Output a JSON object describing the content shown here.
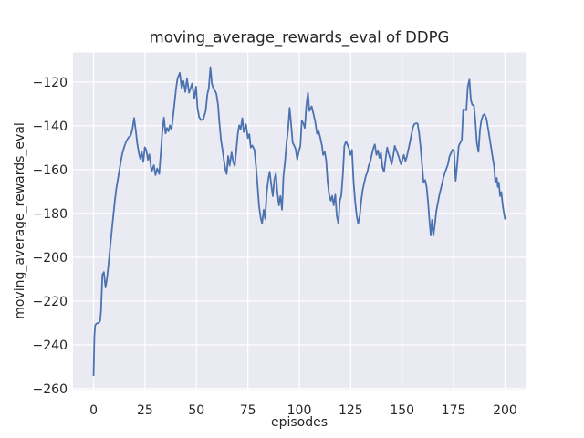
{
  "colors": {
    "figure_bg": "#ffffff",
    "axes_bg": "#eaeaf2",
    "grid": "#ffffff",
    "text": "#262626",
    "line": "#4c72b0"
  },
  "chart_data": {
    "type": "line",
    "title": "moving_average_rewards_eval of DDPG",
    "xlabel": "episodes",
    "ylabel": "moving_average_rewards_eval",
    "grid": true,
    "legend_position": "none",
    "xlim": [
      -10,
      210
    ],
    "ylim": [
      -260.5,
      -106.5
    ],
    "x_ticks": [
      0,
      25,
      50,
      75,
      100,
      125,
      150,
      175,
      200
    ],
    "x_tick_labels": [
      "0",
      "25",
      "50",
      "75",
      "100",
      "125",
      "150",
      "175",
      "200"
    ],
    "y_ticks": [
      -120,
      -140,
      -160,
      -180,
      -200,
      -220,
      -240,
      -260
    ],
    "y_tick_labels": [
      "−120",
      "−140",
      "−160",
      "−180",
      "−200",
      "−220",
      "−240",
      "−260"
    ],
    "series": [
      {
        "name": "moving_average_rewards_eval",
        "color": "#4c72b0",
        "points": [
          [
            0,
            -254
          ],
          [
            0.4,
            -236
          ],
          [
            0.8,
            -231
          ],
          [
            1.5,
            -230.3
          ],
          [
            2.6,
            -230
          ],
          [
            3.2,
            -229
          ],
          [
            3.6,
            -225
          ],
          [
            4.3,
            -208
          ],
          [
            5,
            -206.8
          ],
          [
            5.8,
            -213.8
          ],
          [
            6.5,
            -210
          ],
          [
            7.3,
            -203
          ],
          [
            8,
            -196
          ],
          [
            9,
            -186.5
          ],
          [
            9.6,
            -181
          ],
          [
            10.3,
            -174.5
          ],
          [
            11,
            -169
          ],
          [
            11.8,
            -164.5
          ],
          [
            12.5,
            -160.5
          ],
          [
            13.3,
            -156
          ],
          [
            14,
            -152.5
          ],
          [
            15,
            -149.3
          ],
          [
            16,
            -146.9
          ],
          [
            17,
            -145.3
          ],
          [
            18,
            -144.5
          ],
          [
            18.8,
            -142
          ],
          [
            19.7,
            -136.4
          ],
          [
            20.5,
            -142
          ],
          [
            21.2,
            -147.8
          ],
          [
            22,
            -152.5
          ],
          [
            22.7,
            -155
          ],
          [
            23.4,
            -151.9
          ],
          [
            24.2,
            -156.5
          ],
          [
            24.9,
            -149.8
          ],
          [
            25.6,
            -151
          ],
          [
            26.4,
            -155.5
          ],
          [
            27.1,
            -153
          ],
          [
            28.2,
            -161
          ],
          [
            29.3,
            -158
          ],
          [
            30.1,
            -162.5
          ],
          [
            30.9,
            -159.5
          ],
          [
            31.9,
            -162
          ],
          [
            32.7,
            -152
          ],
          [
            33.4,
            -143
          ],
          [
            34.2,
            -136.2
          ],
          [
            35,
            -143.5
          ],
          [
            35.7,
            -141
          ],
          [
            36.4,
            -142.5
          ],
          [
            37.1,
            -139.8
          ],
          [
            37.9,
            -141.8
          ],
          [
            38.6,
            -136
          ],
          [
            39.3,
            -130
          ],
          [
            40.1,
            -123
          ],
          [
            40.8,
            -118.5
          ],
          [
            41.9,
            -115.8
          ],
          [
            42.8,
            -122.8
          ],
          [
            43.7,
            -119.6
          ],
          [
            44.6,
            -124.5
          ],
          [
            45.4,
            -118.5
          ],
          [
            46.4,
            -124.9
          ],
          [
            47.9,
            -120.7
          ],
          [
            48.9,
            -127.6
          ],
          [
            49.8,
            -122.1
          ],
          [
            50.5,
            -131.8
          ],
          [
            51.3,
            -136
          ],
          [
            52.3,
            -137.4
          ],
          [
            53.4,
            -136.8
          ],
          [
            54.5,
            -133.2
          ],
          [
            55.3,
            -125.6
          ],
          [
            56,
            -122.8
          ],
          [
            56.8,
            -113.2
          ],
          [
            57.5,
            -120.7
          ],
          [
            58.2,
            -122.8
          ],
          [
            59,
            -124
          ],
          [
            59.7,
            -125.4
          ],
          [
            60.5,
            -130.4
          ],
          [
            61.2,
            -139
          ],
          [
            62,
            -147
          ],
          [
            62.7,
            -151
          ],
          [
            63.4,
            -156
          ],
          [
            64.2,
            -160.5
          ],
          [
            64.7,
            -162
          ],
          [
            65.4,
            -153.8
          ],
          [
            66.1,
            -158.2
          ],
          [
            67.1,
            -152.2
          ],
          [
            67.9,
            -156.5
          ],
          [
            68.6,
            -158.3
          ],
          [
            69.3,
            -152
          ],
          [
            70.1,
            -143.6
          ],
          [
            70.8,
            -139.8
          ],
          [
            71.5,
            -141.5
          ],
          [
            72.3,
            -136.5
          ],
          [
            73,
            -142.8
          ],
          [
            74.1,
            -139.3
          ],
          [
            75,
            -145.6
          ],
          [
            75.7,
            -143.8
          ],
          [
            76.4,
            -149.9
          ],
          [
            77.2,
            -149
          ],
          [
            78.2,
            -151
          ],
          [
            79,
            -158.9
          ],
          [
            79.7,
            -167.2
          ],
          [
            80.4,
            -176.3
          ],
          [
            81.2,
            -182
          ],
          [
            81.9,
            -184.6
          ],
          [
            82.7,
            -178.3
          ],
          [
            83.4,
            -182.5
          ],
          [
            84.2,
            -170
          ],
          [
            84.9,
            -164.4
          ],
          [
            85.6,
            -161
          ],
          [
            86.4,
            -167.2
          ],
          [
            87.1,
            -172.1
          ],
          [
            87.9,
            -164.4
          ],
          [
            88.6,
            -161.7
          ],
          [
            89.3,
            -170
          ],
          [
            90.1,
            -176.3
          ],
          [
            90.8,
            -172.1
          ],
          [
            91.6,
            -178.3
          ],
          [
            92.3,
            -163
          ],
          [
            93.1,
            -156
          ],
          [
            93.8,
            -147.8
          ],
          [
            94.5,
            -142.2
          ],
          [
            95.3,
            -131.8
          ],
          [
            96,
            -139
          ],
          [
            96.8,
            -147.8
          ],
          [
            97.5,
            -149
          ],
          [
            98.2,
            -150.6
          ],
          [
            99,
            -155.4
          ],
          [
            99.7,
            -152
          ],
          [
            100.5,
            -149.2
          ],
          [
            101.2,
            -137.6
          ],
          [
            102,
            -139
          ],
          [
            102.7,
            -141
          ],
          [
            103.4,
            -131
          ],
          [
            104.2,
            -124.9
          ],
          [
            104.9,
            -133.2
          ],
          [
            106,
            -131.1
          ],
          [
            106.9,
            -134.6
          ],
          [
            107.7,
            -138
          ],
          [
            108.6,
            -143.6
          ],
          [
            109.4,
            -142.5
          ],
          [
            110.1,
            -145
          ],
          [
            111,
            -149
          ],
          [
            111.6,
            -153.3
          ],
          [
            112.4,
            -152
          ],
          [
            113.1,
            -156.1
          ],
          [
            113.8,
            -165.8
          ],
          [
            114.5,
            -171.4
          ],
          [
            115.3,
            -174.2
          ],
          [
            116,
            -172
          ],
          [
            116.7,
            -176.3
          ],
          [
            117.5,
            -171.4
          ],
          [
            118.2,
            -181.1
          ],
          [
            119,
            -184.6
          ],
          [
            119.7,
            -174.2
          ],
          [
            120.4,
            -172
          ],
          [
            121.2,
            -162
          ],
          [
            121.9,
            -149.2
          ],
          [
            122.7,
            -147.1
          ],
          [
            123.4,
            -148.5
          ],
          [
            124.2,
            -150.6
          ],
          [
            124.9,
            -153.3
          ],
          [
            125.6,
            -151
          ],
          [
            126.4,
            -165.8
          ],
          [
            127.1,
            -174.2
          ],
          [
            127.9,
            -181.1
          ],
          [
            128.6,
            -184.6
          ],
          [
            129.4,
            -181
          ],
          [
            130.1,
            -174.2
          ],
          [
            130.8,
            -169.3
          ],
          [
            131.6,
            -165.8
          ],
          [
            132.3,
            -163
          ],
          [
            133.1,
            -161
          ],
          [
            133.8,
            -158
          ],
          [
            134.5,
            -156.3
          ],
          [
            135.3,
            -153
          ],
          [
            136,
            -150.2
          ],
          [
            136.7,
            -148.5
          ],
          [
            137.5,
            -153.3
          ],
          [
            138.2,
            -151.2
          ],
          [
            139,
            -154.7
          ],
          [
            139.7,
            -152.3
          ],
          [
            140.4,
            -158.9
          ],
          [
            141.2,
            -161
          ],
          [
            142,
            -154.7
          ],
          [
            142.7,
            -149.9
          ],
          [
            143.4,
            -152.6
          ],
          [
            144.2,
            -155
          ],
          [
            144.9,
            -157.5
          ],
          [
            145.7,
            -153.5
          ],
          [
            146.4,
            -149.2
          ],
          [
            147.1,
            -151
          ],
          [
            147.9,
            -153
          ],
          [
            148.6,
            -155
          ],
          [
            149.4,
            -157.5
          ],
          [
            150.1,
            -155.5
          ],
          [
            150.8,
            -153.3
          ],
          [
            151.6,
            -156.1
          ],
          [
            152.3,
            -154
          ],
          [
            153.1,
            -150.5
          ],
          [
            153.8,
            -147.5
          ],
          [
            154.5,
            -144
          ],
          [
            155.3,
            -140.5
          ],
          [
            156,
            -139.2
          ],
          [
            156.8,
            -138.8
          ],
          [
            157.5,
            -139
          ],
          [
            158.2,
            -143
          ],
          [
            159,
            -150
          ],
          [
            159.7,
            -158
          ],
          [
            160.4,
            -165.8
          ],
          [
            161.2,
            -164.8
          ],
          [
            161.9,
            -168
          ],
          [
            162.7,
            -176
          ],
          [
            163.4,
            -185
          ],
          [
            163.9,
            -190.1
          ],
          [
            164.5,
            -183
          ],
          [
            165.2,
            -190.1
          ],
          [
            165.9,
            -185
          ],
          [
            166.6,
            -179
          ],
          [
            167.4,
            -175
          ],
          [
            168.1,
            -171.5
          ],
          [
            169,
            -168
          ],
          [
            170.1,
            -163.5
          ],
          [
            171,
            -160.8
          ],
          [
            172.2,
            -157.8
          ],
          [
            173,
            -154
          ],
          [
            173.8,
            -152.3
          ],
          [
            174.5,
            -150.9
          ],
          [
            175.2,
            -151.5
          ],
          [
            176,
            -165.1
          ],
          [
            176.8,
            -157
          ],
          [
            177.5,
            -149.2
          ],
          [
            178.2,
            -147.8
          ],
          [
            179,
            -146.5
          ],
          [
            179.7,
            -132.5
          ],
          [
            180.4,
            -132.7
          ],
          [
            181.2,
            -132.9
          ],
          [
            181.9,
            -122
          ],
          [
            182.7,
            -118.9
          ],
          [
            183.4,
            -128.3
          ],
          [
            184.1,
            -130.4
          ],
          [
            184.9,
            -130.6
          ],
          [
            185.6,
            -138
          ],
          [
            186.3,
            -147.8
          ],
          [
            187.1,
            -151.9
          ],
          [
            187.8,
            -142.2
          ],
          [
            188.5,
            -137.4
          ],
          [
            189.3,
            -135.3
          ],
          [
            190,
            -134.6
          ],
          [
            191,
            -136.8
          ],
          [
            192,
            -142.5
          ],
          [
            193,
            -148.5
          ],
          [
            194,
            -154.5
          ],
          [
            194.7,
            -158.5
          ],
          [
            195.3,
            -165.8
          ],
          [
            196,
            -163.8
          ],
          [
            196.5,
            -167.9
          ],
          [
            197,
            -165.9
          ],
          [
            197.6,
            -172.1
          ],
          [
            198.2,
            -170.3
          ],
          [
            198.9,
            -176.5
          ],
          [
            199.5,
            -180
          ],
          [
            200,
            -182.5
          ]
        ]
      }
    ]
  }
}
